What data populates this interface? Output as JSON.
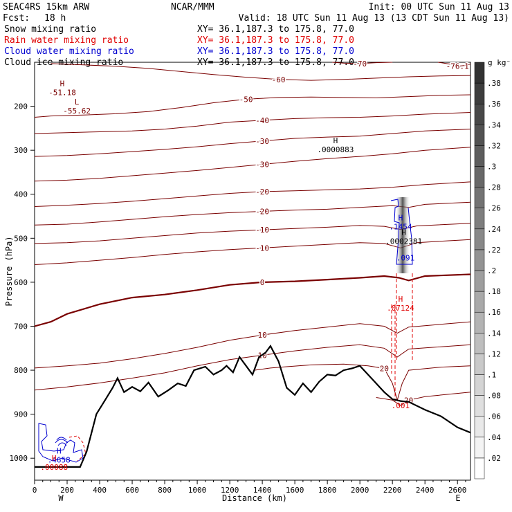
{
  "header": {
    "title": "SEAC4RS 15km ARW",
    "org": "NCAR/MMM",
    "init": "Init: 00 UTC Sun 11 Aug 13",
    "fcst_label": "Fcst:",
    "fcst_value": "18 h",
    "valid": "Valid: 18 UTC Sun 11 Aug 13 (13 CDT Sun 11 Aug 13)"
  },
  "fields": [
    {
      "name": "Snow mixing ratio",
      "xy": "XY=  36.1,187.3 to 175.8, 77.0",
      "color": "#000000"
    },
    {
      "name": "Rain water mixing ratio",
      "xy": "XY=  36.1,187.3 to 175.8, 77.0",
      "color": "#e00000"
    },
    {
      "name": "Cloud water mixing ratio",
      "xy": "XY=  36.1,187.3 to 175.8, 77.0",
      "color": "#0000d0"
    },
    {
      "name": "Cloud ice mixing ratio",
      "xy": "XY=  36.1,187.3 to 175.8, 77.0",
      "color": "#000000"
    }
  ],
  "colorbar": {
    "unit": "g kg⁻¹",
    "labels": [
      ".02",
      ".04",
      ".06",
      ".08",
      ".1",
      ".12",
      ".14",
      ".16",
      ".18",
      ".2",
      ".22",
      ".24",
      ".26",
      ".28",
      ".3",
      ".32",
      ".34",
      ".36",
      ".38"
    ]
  },
  "chart_data": {
    "type": "contour cross-section",
    "xlabel": "Distance (km)",
    "ylabel": "Pressure (hPa)",
    "x_ticks": [
      0,
      200,
      400,
      600,
      800,
      1000,
      1200,
      1400,
      1600,
      1800,
      2000,
      2200,
      2400,
      2600
    ],
    "y_ticks": [
      200,
      300,
      400,
      500,
      600,
      700,
      800,
      900,
      1000
    ],
    "xlim": [
      0,
      2680
    ],
    "ylim": [
      1050,
      100
    ],
    "x_end_labels": {
      "left": "W",
      "right": "E"
    },
    "temperature_contours": [
      {
        "value": -70,
        "label": "-70",
        "points": [
          [
            1830,
            100
          ],
          [
            1900,
            102
          ],
          [
            2000,
            103
          ],
          [
            2100,
            101
          ],
          [
            2200,
            100
          ]
        ]
      },
      {
        "value": -76.1,
        "label": "-76.1",
        "points": [
          [
            2480,
            100
          ],
          [
            2550,
            104
          ],
          [
            2600,
            109
          ],
          [
            2650,
            107
          ],
          [
            2680,
            104
          ]
        ]
      },
      {
        "value": -60,
        "label": "-60",
        "points": [
          [
            100,
            103
          ],
          [
            300,
            106
          ],
          [
            500,
            109
          ],
          [
            700,
            114
          ],
          [
            900,
            121
          ],
          [
            1100,
            128
          ],
          [
            1300,
            134
          ],
          [
            1500,
            139
          ],
          [
            1700,
            141
          ],
          [
            1900,
            139
          ],
          [
            2100,
            136
          ],
          [
            2300,
            133
          ],
          [
            2500,
            131
          ],
          [
            2680,
            130
          ]
        ]
      },
      {
        "value": -50,
        "label": "-50",
        "points": [
          [
            0,
            225
          ],
          [
            100,
            222
          ],
          [
            300,
            220
          ],
          [
            500,
            217
          ],
          [
            700,
            212
          ],
          [
            900,
            203
          ],
          [
            1100,
            192
          ],
          [
            1300,
            184
          ],
          [
            1500,
            180
          ],
          [
            1700,
            179
          ],
          [
            1900,
            180
          ],
          [
            2100,
            181
          ],
          [
            2300,
            178
          ],
          [
            2500,
            175
          ],
          [
            2680,
            174
          ]
        ]
      },
      {
        "value": -40,
        "label": "-40",
        "points": [
          [
            0,
            262
          ],
          [
            200,
            260
          ],
          [
            400,
            258
          ],
          [
            600,
            256
          ],
          [
            800,
            252
          ],
          [
            1000,
            245
          ],
          [
            1200,
            236
          ],
          [
            1400,
            232
          ],
          [
            1600,
            228
          ],
          [
            1800,
            226
          ],
          [
            2000,
            225
          ],
          [
            2200,
            222
          ],
          [
            2400,
            218
          ],
          [
            2680,
            214
          ]
        ]
      },
      {
        "value": -30,
        "label": "-30",
        "points": [
          [
            0,
            314
          ],
          [
            200,
            312
          ],
          [
            400,
            308
          ],
          [
            600,
            303
          ],
          [
            800,
            298
          ],
          [
            1000,
            292
          ],
          [
            1200,
            285
          ],
          [
            1400,
            279
          ],
          [
            1600,
            273
          ],
          [
            1800,
            270
          ],
          [
            2000,
            268
          ],
          [
            2200,
            262
          ],
          [
            2400,
            256
          ],
          [
            2680,
            252
          ]
        ]
      },
      {
        "value": -30,
        "label": "-30",
        "points": [
          [
            0,
            370
          ],
          [
            200,
            368
          ],
          [
            400,
            364
          ],
          [
            600,
            358
          ],
          [
            800,
            352
          ],
          [
            1000,
            346
          ],
          [
            1200,
            339
          ],
          [
            1400,
            332
          ],
          [
            1600,
            325
          ],
          [
            1800,
            319
          ],
          [
            2000,
            314
          ],
          [
            2200,
            308
          ],
          [
            2400,
            300
          ],
          [
            2680,
            293
          ]
        ]
      },
      {
        "value": -20,
        "label": "-20",
        "points": [
          [
            0,
            428
          ],
          [
            200,
            425
          ],
          [
            400,
            421
          ],
          [
            600,
            416
          ],
          [
            800,
            410
          ],
          [
            1000,
            404
          ],
          [
            1200,
            398
          ],
          [
            1400,
            394
          ],
          [
            1600,
            392
          ],
          [
            1800,
            390
          ],
          [
            2000,
            388
          ],
          [
            2200,
            384
          ],
          [
            2400,
            378
          ],
          [
            2680,
            372
          ]
        ]
      },
      {
        "value": -20,
        "label": "-20",
        "points": [
          [
            0,
            470
          ],
          [
            200,
            468
          ],
          [
            400,
            463
          ],
          [
            600,
            457
          ],
          [
            800,
            451
          ],
          [
            1000,
            446
          ],
          [
            1200,
            442
          ],
          [
            1400,
            439
          ],
          [
            1600,
            436
          ],
          [
            1800,
            434
          ],
          [
            2000,
            430
          ],
          [
            2200,
            426
          ],
          [
            2300,
            430
          ],
          [
            2400,
            423
          ],
          [
            2680,
            418
          ]
        ]
      },
      {
        "value": -10,
        "label": "-10",
        "points": [
          [
            0,
            512
          ],
          [
            200,
            510
          ],
          [
            400,
            506
          ],
          [
            600,
            500
          ],
          [
            800,
            494
          ],
          [
            1000,
            488
          ],
          [
            1200,
            484
          ],
          [
            1400,
            481
          ],
          [
            1600,
            478
          ],
          [
            1800,
            475
          ],
          [
            2000,
            471
          ],
          [
            2150,
            473
          ],
          [
            2250,
            480
          ],
          [
            2350,
            472
          ],
          [
            2680,
            466
          ]
        ]
      },
      {
        "value": -10,
        "label": "-10",
        "points": [
          [
            0,
            560
          ],
          [
            200,
            556
          ],
          [
            400,
            550
          ],
          [
            600,
            544
          ],
          [
            800,
            537
          ],
          [
            1000,
            531
          ],
          [
            1200,
            526
          ],
          [
            1400,
            522
          ],
          [
            1600,
            518
          ],
          [
            1800,
            514
          ],
          [
            2000,
            510
          ],
          [
            2150,
            512
          ],
          [
            2250,
            522
          ],
          [
            2350,
            510
          ],
          [
            2680,
            503
          ]
        ]
      },
      {
        "value": 0,
        "label": "0",
        "points": [
          [
            0,
            700
          ],
          [
            100,
            690
          ],
          [
            200,
            672
          ],
          [
            400,
            650
          ],
          [
            600,
            635
          ],
          [
            800,
            628
          ],
          [
            1000,
            618
          ],
          [
            1200,
            606
          ],
          [
            1400,
            600
          ],
          [
            1600,
            598
          ],
          [
            1800,
            594
          ],
          [
            2000,
            590
          ],
          [
            2150,
            586
          ],
          [
            2240,
            590
          ],
          [
            2300,
            596
          ],
          [
            2400,
            586
          ],
          [
            2680,
            582
          ]
        ],
        "bold": true
      },
      {
        "value": 10,
        "label": "10",
        "points": [
          [
            0,
            795
          ],
          [
            200,
            790
          ],
          [
            400,
            784
          ],
          [
            600,
            774
          ],
          [
            800,
            762
          ],
          [
            1000,
            748
          ],
          [
            1200,
            732
          ],
          [
            1400,
            720
          ],
          [
            1600,
            710
          ],
          [
            1800,
            702
          ],
          [
            2000,
            694
          ],
          [
            2150,
            700
          ],
          [
            2230,
            716
          ],
          [
            2300,
            702
          ],
          [
            2680,
            690
          ]
        ]
      },
      {
        "value": 10,
        "label": "10",
        "points": [
          [
            0,
            845
          ],
          [
            200,
            838
          ],
          [
            400,
            829
          ],
          [
            600,
            818
          ],
          [
            800,
            806
          ],
          [
            1000,
            790
          ],
          [
            1200,
            776
          ],
          [
            1400,
            766
          ],
          [
            1600,
            756
          ],
          [
            1800,
            748
          ],
          [
            2000,
            742
          ],
          [
            2150,
            750
          ],
          [
            2230,
            770
          ],
          [
            2300,
            752
          ],
          [
            2680,
            742
          ]
        ]
      },
      {
        "value": 20,
        "label": "20",
        "points": [
          [
            1350,
            800
          ],
          [
            1450,
            795
          ],
          [
            1550,
            792
          ],
          [
            1700,
            788
          ],
          [
            1900,
            786
          ],
          [
            2050,
            790
          ],
          [
            2150,
            796
          ],
          [
            2200,
            830
          ],
          [
            2230,
            868
          ],
          [
            2260,
            830
          ],
          [
            2300,
            800
          ],
          [
            2500,
            793
          ],
          [
            2680,
            790
          ]
        ]
      },
      {
        "value": 20,
        "label": "20",
        "points": [
          [
            2100,
            862
          ],
          [
            2200,
            868
          ],
          [
            2250,
            880
          ],
          [
            2300,
            868
          ],
          [
            2400,
            860
          ],
          [
            2680,
            850
          ]
        ]
      }
    ],
    "terrain": [
      [
        0,
        1020
      ],
      [
        280,
        1020
      ],
      [
        320,
        985
      ],
      [
        380,
        900
      ],
      [
        430,
        870
      ],
      [
        480,
        840
      ],
      [
        510,
        818
      ],
      [
        550,
        850
      ],
      [
        600,
        838
      ],
      [
        650,
        848
      ],
      [
        700,
        828
      ],
      [
        760,
        860
      ],
      [
        820,
        846
      ],
      [
        880,
        830
      ],
      [
        930,
        836
      ],
      [
        980,
        800
      ],
      [
        1050,
        792
      ],
      [
        1100,
        810
      ],
      [
        1150,
        800
      ],
      [
        1180,
        790
      ],
      [
        1220,
        805
      ],
      [
        1260,
        770
      ],
      [
        1300,
        790
      ],
      [
        1340,
        810
      ],
      [
        1380,
        770
      ],
      [
        1420,
        760
      ],
      [
        1450,
        745
      ],
      [
        1500,
        780
      ],
      [
        1550,
        840
      ],
      [
        1600,
        856
      ],
      [
        1650,
        830
      ],
      [
        1700,
        850
      ],
      [
        1750,
        826
      ],
      [
        1800,
        810
      ],
      [
        1850,
        812
      ],
      [
        1900,
        800
      ],
      [
        1950,
        796
      ],
      [
        2000,
        790
      ],
      [
        2050,
        810
      ],
      [
        2100,
        830
      ],
      [
        2150,
        850
      ],
      [
        2200,
        866
      ],
      [
        2250,
        870
      ],
      [
        2300,
        872
      ],
      [
        2400,
        890
      ],
      [
        2500,
        905
      ],
      [
        2600,
        930
      ],
      [
        2680,
        942
      ]
    ],
    "extrema": [
      {
        "type": "H",
        "value": "-51.18",
        "x": 170,
        "p": 170,
        "color": "#7a0000"
      },
      {
        "type": "L",
        "value": "-55.62",
        "x": 260,
        "p": 212,
        "color": "#7a0000"
      },
      {
        "type": "H",
        "value": ".0000883",
        "x": 1850,
        "p": 300,
        "color": "#000000"
      },
      {
        "type": "H",
        "value": ".1454",
        "x": 2250,
        "p": 475,
        "color": "#0000d0"
      },
      {
        "type": "H",
        "value": ".0002381",
        "x": 2270,
        "p": 508,
        "color": "#000000"
      },
      {
        "type": "",
        "value": ".091",
        "x": 2280,
        "p": 546,
        "color": "#0000d0"
      },
      {
        "type": "H",
        "value": ".07124",
        "x": 2250,
        "p": 660,
        "color": "#e00000"
      },
      {
        "type": "",
        "value": ".001",
        "x": 2250,
        "p": 882,
        "color": "#e00000"
      },
      {
        "type": "H",
        "value": ".4658",
        "x": 150,
        "p": 1005,
        "color": "#0000d0"
      },
      {
        "type": "H",
        "value": ".00088",
        "x": 120,
        "p": 1022,
        "color": "#e00000"
      }
    ]
  }
}
